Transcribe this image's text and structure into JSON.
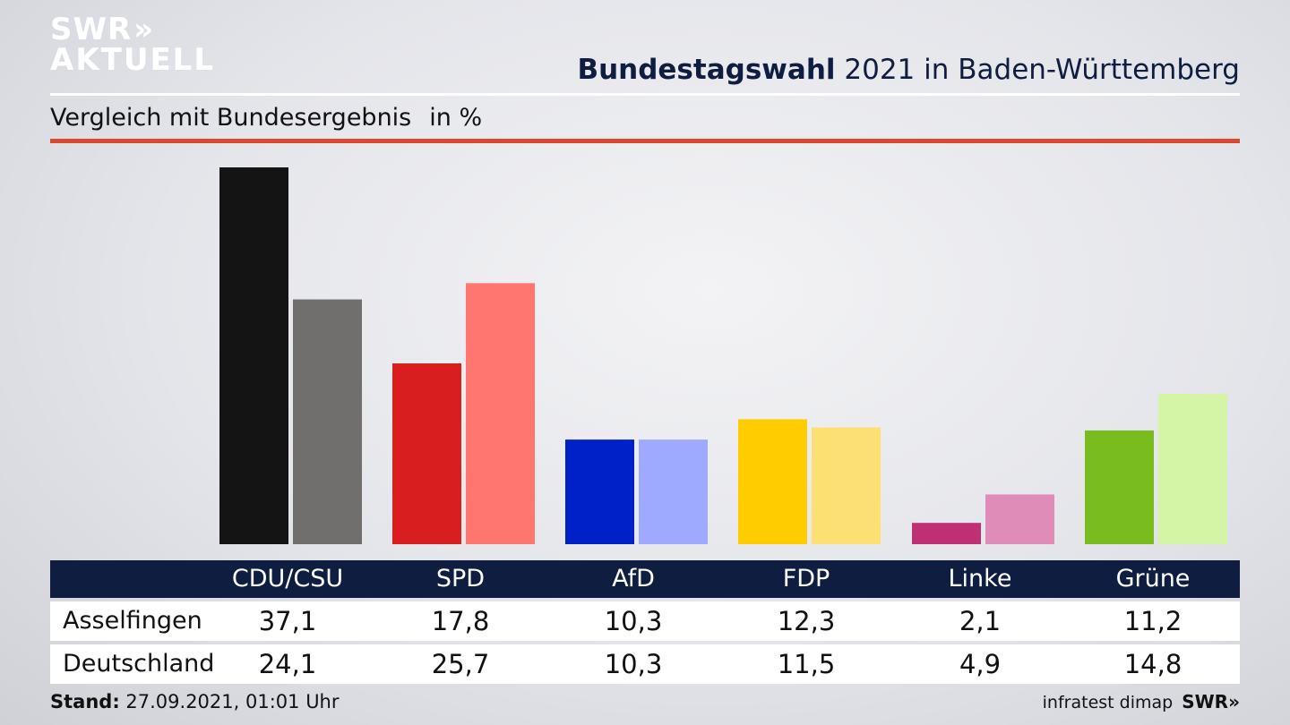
{
  "brand": {
    "line1": "SWR",
    "chevrons": "»",
    "line2": "AKTUELL"
  },
  "title": {
    "bold": "Bundestagswahl",
    "rest": "2021 in Baden-Württemberg"
  },
  "subtitle": {
    "text": "Vergleich mit Bundesergebnis",
    "unit": "in %"
  },
  "table": {
    "headers": [
      "CDU/CSU",
      "SPD",
      "AfD",
      "FDP",
      "Linke",
      "Grüne"
    ],
    "rows": [
      {
        "label": "Asselfingen",
        "values": [
          "37,1",
          "17,8",
          "10,3",
          "12,3",
          "2,1",
          "11,2"
        ]
      },
      {
        "label": "Deutschland",
        "values": [
          "24,1",
          "25,7",
          "10,3",
          "11,5",
          "4,9",
          "14,8"
        ]
      }
    ]
  },
  "footer": {
    "stand_label": "Stand:",
    "stand_value": "27.09.2021, 01:01 Uhr",
    "source": "infratest dimap",
    "brand": "SWR»"
  },
  "chart_data": {
    "type": "bar",
    "categories": [
      "CDU/CSU",
      "SPD",
      "AfD",
      "FDP",
      "Linke",
      "Grüne"
    ],
    "series": [
      {
        "name": "Asselfingen",
        "values": [
          37.1,
          17.8,
          10.3,
          12.3,
          2.1,
          11.2
        ],
        "colors": [
          "#141414",
          "#d81e1e",
          "#0021c7",
          "#ffcc00",
          "#bf2f73",
          "#78bc1e"
        ]
      },
      {
        "name": "Deutschland",
        "values": [
          24.1,
          25.7,
          10.3,
          11.5,
          4.9,
          14.8
        ],
        "colors": [
          "#706f6d",
          "#ff7570",
          "#9eaaff",
          "#fde074",
          "#e08cb9",
          "#d4f5a6"
        ]
      }
    ],
    "ylim": [
      0,
      37.1
    ],
    "grid": false,
    "legend": "table-below"
  }
}
